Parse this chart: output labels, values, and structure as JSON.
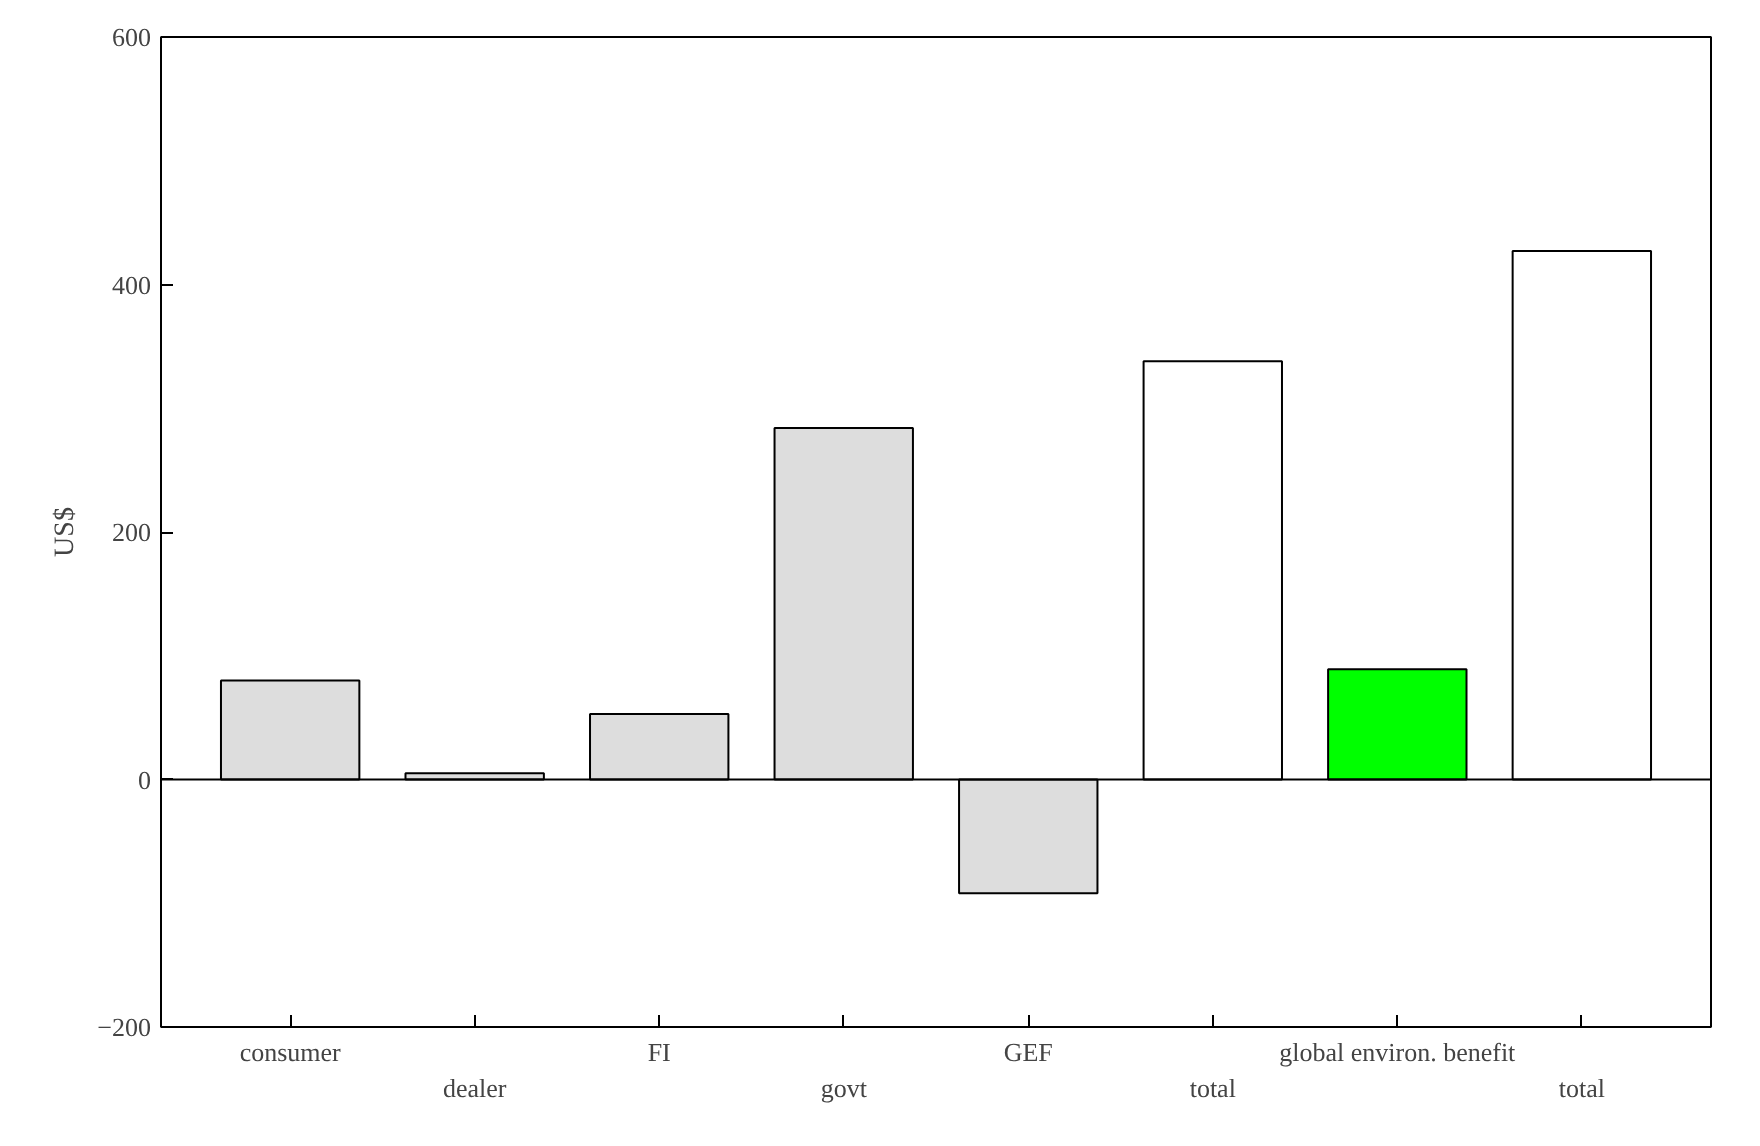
{
  "chart_data": {
    "type": "bar",
    "ylabel": "US$",
    "categories": [
      "consumer",
      "dealer",
      "FI",
      "govt",
      "GEF",
      "total",
      "global environ. benefit",
      "total"
    ],
    "values": [
      80,
      5,
      53,
      284,
      -92,
      338,
      89,
      427
    ],
    "colors": [
      "#dddddd",
      "#dddddd",
      "#dddddd",
      "#dddddd",
      "#dddddd",
      "#ffffff",
      "#00ff00",
      "#ffffff"
    ],
    "ylim": [
      -200,
      600
    ],
    "yticks": [
      -200,
      0,
      200,
      400,
      600
    ],
    "ref_lines": [
      {
        "axis": "y",
        "value": 0,
        "color": "#000000"
      }
    ],
    "grid": false
  }
}
